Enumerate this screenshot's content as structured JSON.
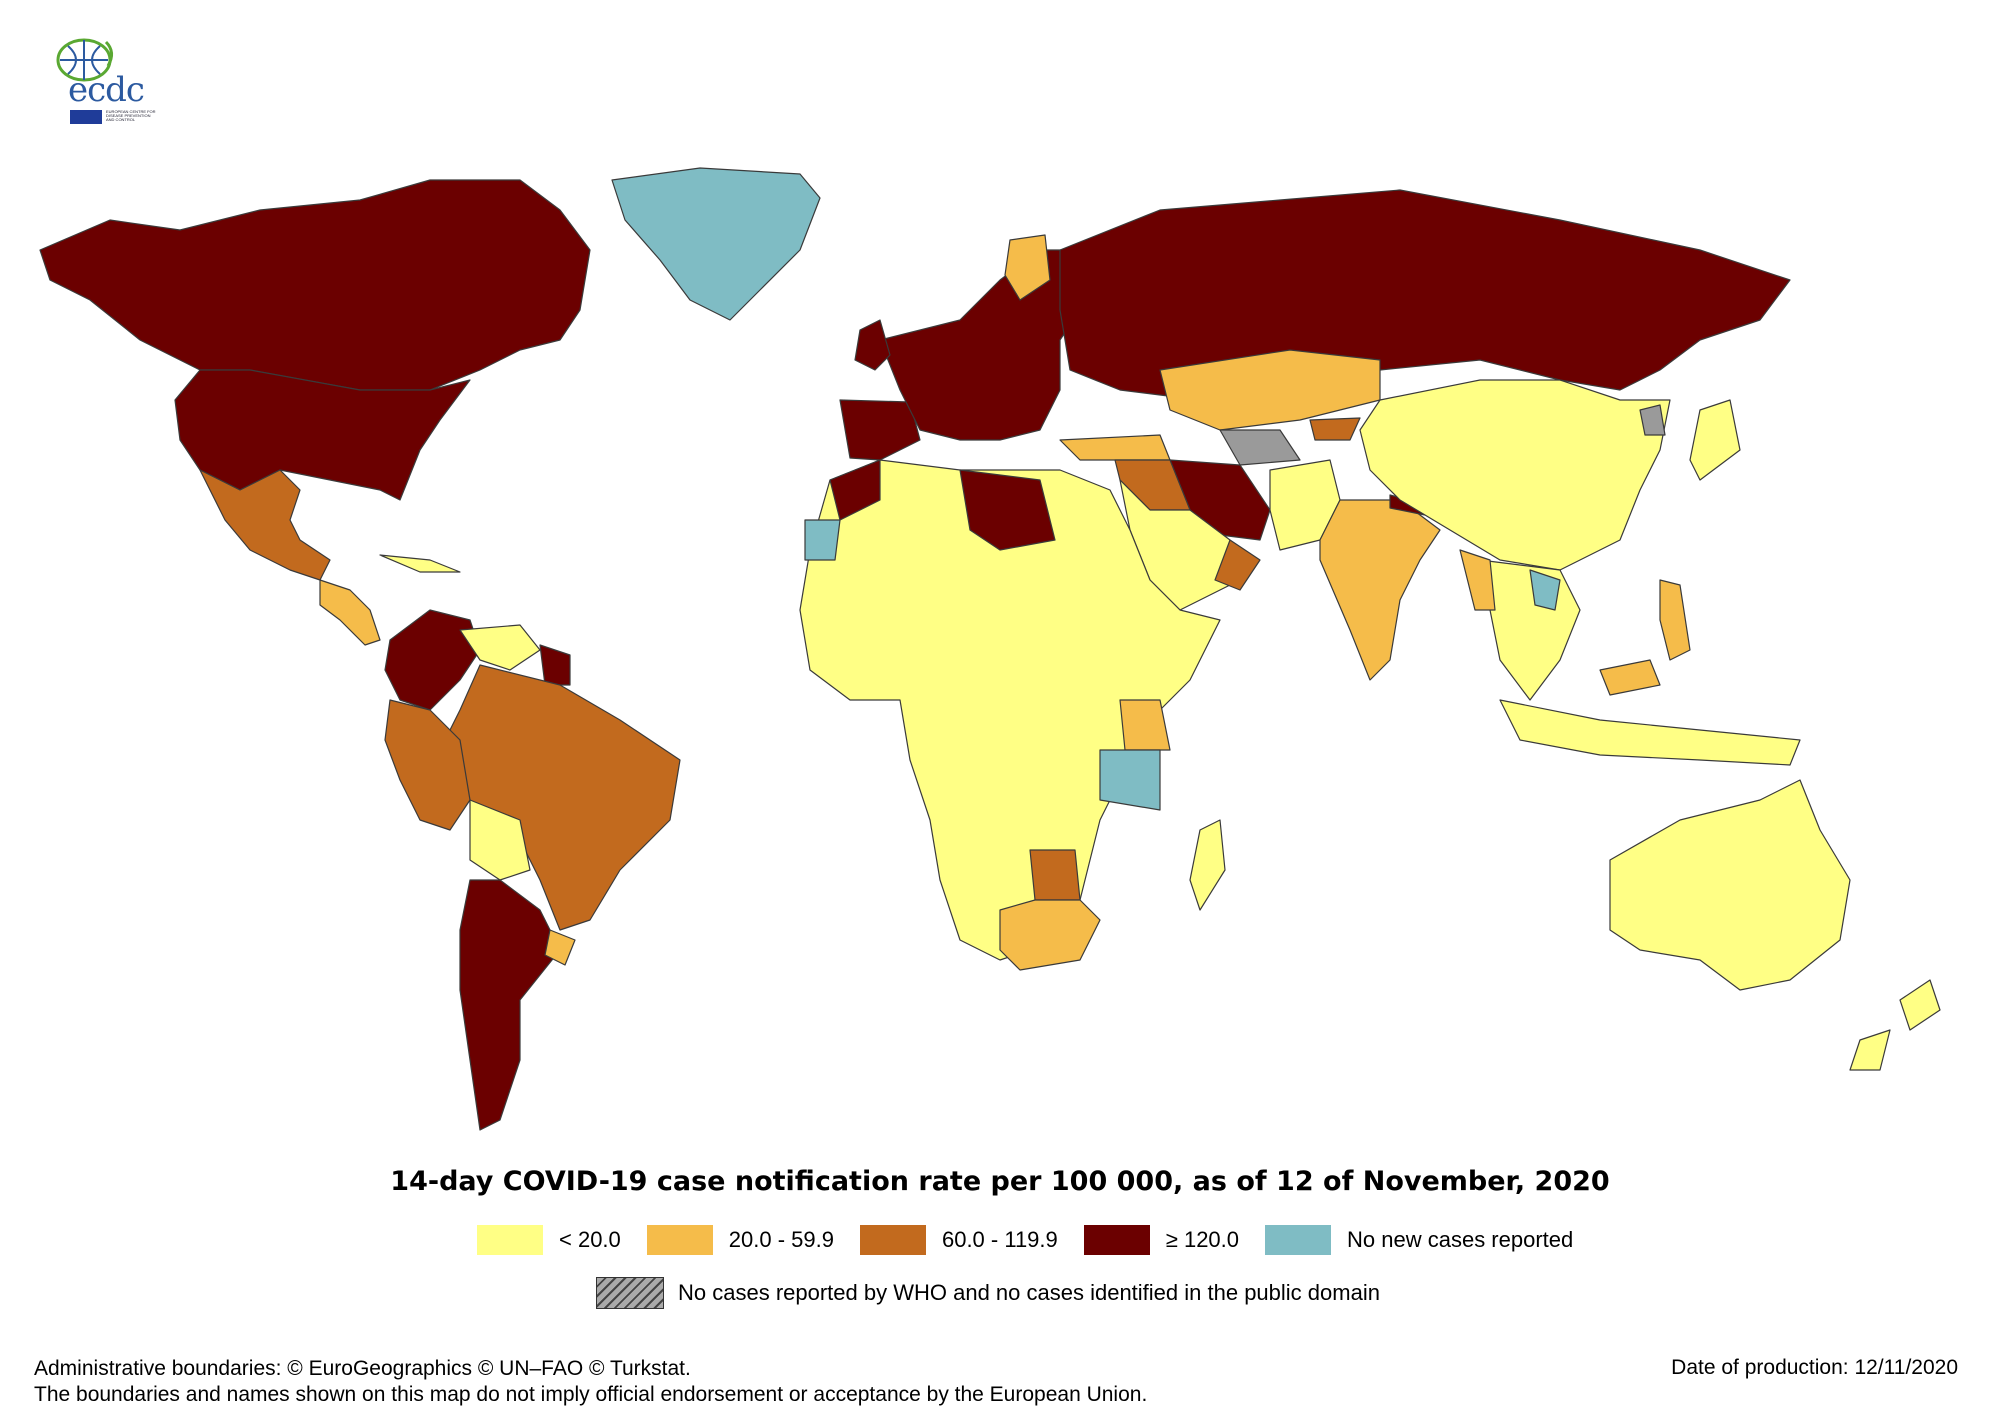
{
  "logo": {
    "text": "ecdc",
    "subtext": "EUROPEAN CENTRE FOR DISEASE PREVENTION AND CONTROL"
  },
  "map": {
    "background": "#ffffff",
    "border_color": "#3a3a3a",
    "colors": {
      "lt20": "#ffff85",
      "c20_59": "#f5bc4a",
      "c60_119": "#c26a1e",
      "ge120": "#6b0000",
      "none_new": "#7fbcc4",
      "no_data": "#9a9a9a"
    }
  },
  "title": "14-day COVID-19 case notification rate per 100 000, as of 12 of November, 2020",
  "legend": {
    "items": [
      {
        "label": "< 20.0",
        "color": "#ffff85"
      },
      {
        "label": "20.0 - 59.9",
        "color": "#f5bc4a"
      },
      {
        "label": "60.0 - 119.9",
        "color": "#c26a1e"
      },
      {
        "label": "≥ 120.0",
        "color": "#6b0000"
      },
      {
        "label": "No new cases reported",
        "color": "#7fbcc4"
      }
    ],
    "no_data_label": "No cases reported by WHO and no cases identified in the public domain"
  },
  "footer": {
    "line1": "Administrative boundaries: © EuroGeographics © UN–FAO © Turkstat.",
    "line2": "The boundaries and names shown on this map do not imply official endorsement or acceptance by the European Union.",
    "date": "Date of production: 12/11/2020"
  }
}
